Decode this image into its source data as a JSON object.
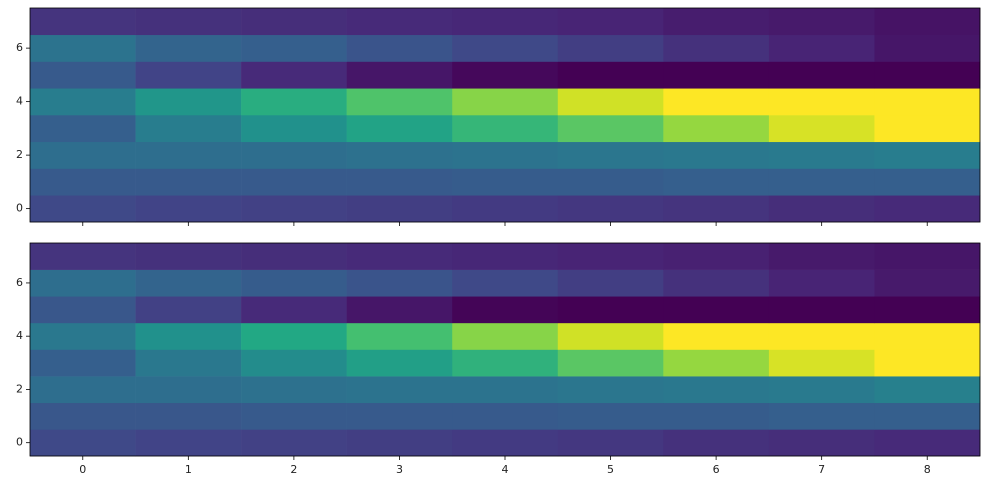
{
  "chart_data": [
    {
      "type": "heatmap",
      "cmap": "viridis",
      "clim": [
        0,
        1
      ],
      "x": [
        0,
        1,
        2,
        3,
        4,
        5,
        6,
        7,
        8
      ],
      "y": [
        0,
        1,
        2,
        3,
        4,
        5,
        6,
        7
      ],
      "values": [
        [
          0.22,
          0.2,
          0.19,
          0.18,
          0.17,
          0.16,
          0.15,
          0.13,
          0.12
        ],
        [
          0.28,
          0.28,
          0.28,
          0.28,
          0.29,
          0.29,
          0.3,
          0.3,
          0.3
        ],
        [
          0.36,
          0.36,
          0.36,
          0.37,
          0.38,
          0.39,
          0.4,
          0.41,
          0.42
        ],
        [
          0.3,
          0.42,
          0.5,
          0.58,
          0.66,
          0.74,
          0.84,
          0.94,
          1.0
        ],
        [
          0.42,
          0.52,
          0.62,
          0.72,
          0.82,
          0.93,
          1.0,
          1.0,
          1.0
        ],
        [
          0.28,
          0.2,
          0.12,
          0.06,
          0.02,
          0.0,
          0.0,
          0.0,
          0.0
        ],
        [
          0.38,
          0.32,
          0.3,
          0.26,
          0.22,
          0.18,
          0.14,
          0.1,
          0.06
        ],
        [
          0.15,
          0.14,
          0.13,
          0.12,
          0.11,
          0.1,
          0.08,
          0.07,
          0.05
        ]
      ],
      "xlim": [
        -0.5,
        8.5
      ],
      "ylim": [
        -0.5,
        7.5
      ],
      "xticks": [
        0,
        1,
        2,
        3,
        4,
        5,
        6,
        7,
        8
      ],
      "yticks": [
        0,
        2,
        4,
        6
      ],
      "xtick_labels": false
    },
    {
      "type": "heatmap",
      "cmap": "viridis",
      "clim": [
        0,
        1
      ],
      "x": [
        0,
        1,
        2,
        3,
        4,
        5,
        6,
        7,
        8
      ],
      "y": [
        0,
        1,
        2,
        3,
        4,
        5,
        6,
        7
      ],
      "values": [
        [
          0.22,
          0.2,
          0.19,
          0.18,
          0.17,
          0.16,
          0.14,
          0.13,
          0.12
        ],
        [
          0.27,
          0.27,
          0.28,
          0.28,
          0.28,
          0.29,
          0.29,
          0.3,
          0.3
        ],
        [
          0.36,
          0.36,
          0.37,
          0.38,
          0.38,
          0.39,
          0.4,
          0.41,
          0.43
        ],
        [
          0.3,
          0.4,
          0.48,
          0.56,
          0.64,
          0.74,
          0.84,
          0.94,
          1.0
        ],
        [
          0.4,
          0.5,
          0.6,
          0.7,
          0.82,
          0.93,
          1.0,
          1.0,
          1.0
        ],
        [
          0.27,
          0.19,
          0.12,
          0.06,
          0.01,
          0.0,
          0.0,
          0.0,
          0.0
        ],
        [
          0.36,
          0.32,
          0.29,
          0.26,
          0.22,
          0.18,
          0.14,
          0.1,
          0.07
        ],
        [
          0.15,
          0.14,
          0.13,
          0.12,
          0.11,
          0.1,
          0.09,
          0.07,
          0.06
        ]
      ],
      "xlim": [
        -0.5,
        8.5
      ],
      "ylim": [
        -0.5,
        7.5
      ],
      "xticks": [
        0,
        1,
        2,
        3,
        4,
        5,
        6,
        7,
        8
      ],
      "yticks": [
        0,
        2,
        4,
        6
      ],
      "xtick_labels": true
    }
  ]
}
